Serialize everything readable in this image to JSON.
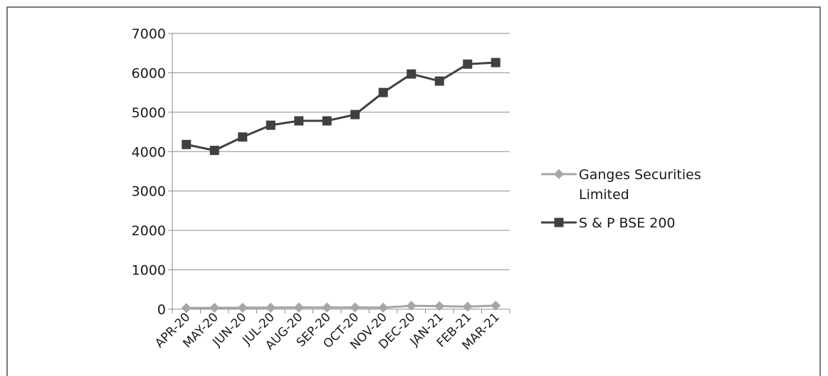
{
  "chart_data": {
    "type": "line",
    "title": "",
    "xlabel": "",
    "ylabel": "",
    "categories": [
      "APR-20",
      "MAY-20",
      "JUN-20",
      "JUL-20",
      "AUG-20",
      "SEP-20",
      "OCT-20",
      "NOV-20",
      "DEC-20",
      "JAN-21",
      "FEB-21",
      "MAR-21"
    ],
    "ylim": [
      0,
      7000
    ],
    "yticks": [
      "0",
      "1000",
      "2000",
      "3000",
      "4000",
      "5000",
      "6000",
      "7000"
    ],
    "grid": true,
    "legend_position": "right",
    "series": [
      {
        "name": "Ganges Securities Limited",
        "legend_lines": [
          "Ganges Securities",
          "Limited"
        ],
        "marker": "diamond",
        "color": "#a6a6a6",
        "values": [
          30,
          35,
          38,
          40,
          45,
          42,
          45,
          40,
          85,
          80,
          65,
          90
        ]
      },
      {
        "name": "S & P BSE 200",
        "legend_lines": [
          "S & P BSE 200"
        ],
        "marker": "square",
        "color": "#404040",
        "values": [
          4180,
          4030,
          4370,
          4670,
          4780,
          4780,
          4940,
          5500,
          5970,
          5790,
          6220,
          6260
        ]
      }
    ]
  }
}
